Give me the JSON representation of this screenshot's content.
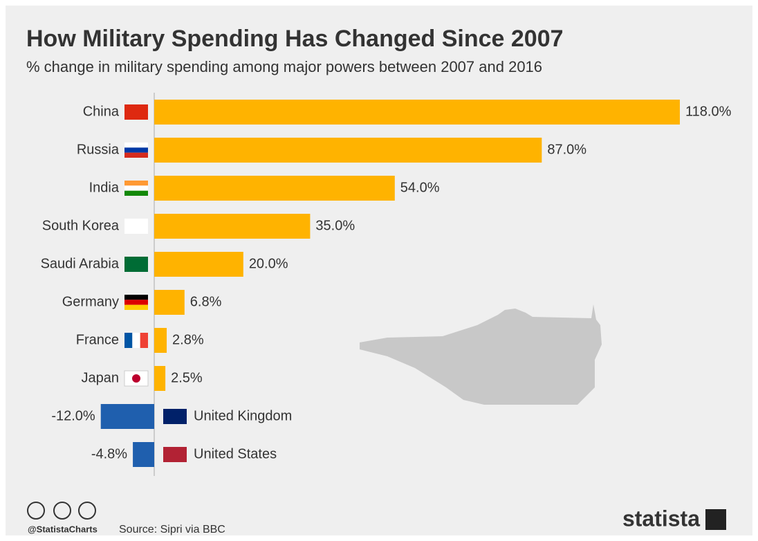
{
  "chart_data": {
    "type": "bar",
    "orientation": "horizontal",
    "title": "How Military Spending Has Changed Since 2007",
    "subtitle": "% change in military spending among major powers between 2007 and 2016",
    "categories": [
      "China",
      "Russia",
      "India",
      "South Korea",
      "Saudi Arabia",
      "Germany",
      "France",
      "Japan",
      "United Kingdom",
      "United States"
    ],
    "values": [
      118,
      87,
      54,
      35,
      20,
      6.8,
      2.8,
      2.5,
      -12,
      -4.8
    ],
    "value_labels": [
      "118.0%",
      "87.0%",
      "54.0%",
      "35.0%",
      "20.0%",
      "6.8%",
      "2.8%",
      "2.5%",
      "-12.0%",
      "-4.8%"
    ],
    "color": "#ffb300",
    "negative_color": "#1f5fae"
  },
  "footer": {
    "handle": "@StatistaCharts",
    "source": "Source: Sipri via BBC",
    "brand": "statista"
  }
}
